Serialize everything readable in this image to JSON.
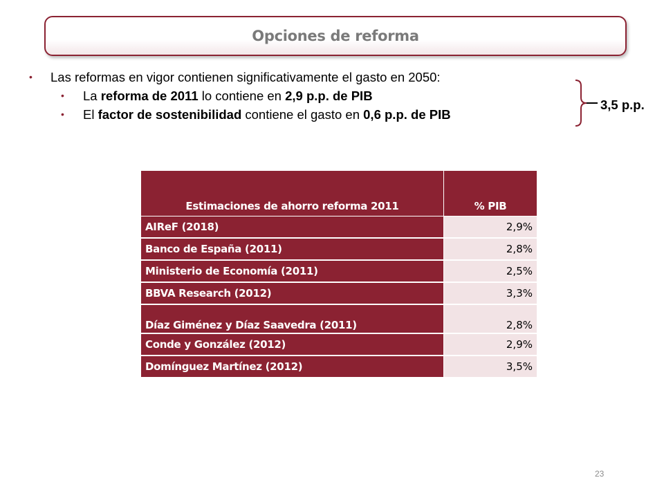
{
  "title": "Opciones de reforma",
  "bullets": {
    "main": "Las reformas en vigor contienen significativamente el gasto en 2050:",
    "sub1": {
      "a": "La ",
      "b": "reforma de 2011",
      "c": " lo contiene en ",
      "d": "2,9 p.p. de PIB"
    },
    "sub2": {
      "a": "El ",
      "b": "factor de sostenibilidad",
      "c": " contiene el gasto en ",
      "d": "0,6 p.p. de PIB"
    }
  },
  "bracket_label": "3,5 p.p.",
  "table": {
    "headers": [
      "Estimaciones de ahorro reforma 2011",
      "% PIB"
    ],
    "rows": [
      [
        "AIReF (2018)",
        "2,9%"
      ],
      [
        "Banco de España (2011)",
        "2,8%"
      ],
      [
        "Ministerio de Economía (2011)",
        "2,5%"
      ],
      [
        "BBVA Research (2012)",
        "3,3%"
      ],
      [
        "Díaz Giménez y Díaz Saavedra (2011)",
        "2,8%"
      ],
      [
        "Conde y González (2012)",
        "2,9%"
      ],
      [
        "Domínguez Martínez (2012)",
        "3,5%"
      ]
    ]
  },
  "page_number": "23",
  "colors": {
    "accent": "#8b2232",
    "cell_light": "#f2e3e5",
    "title_text": "#7a7a7a"
  }
}
